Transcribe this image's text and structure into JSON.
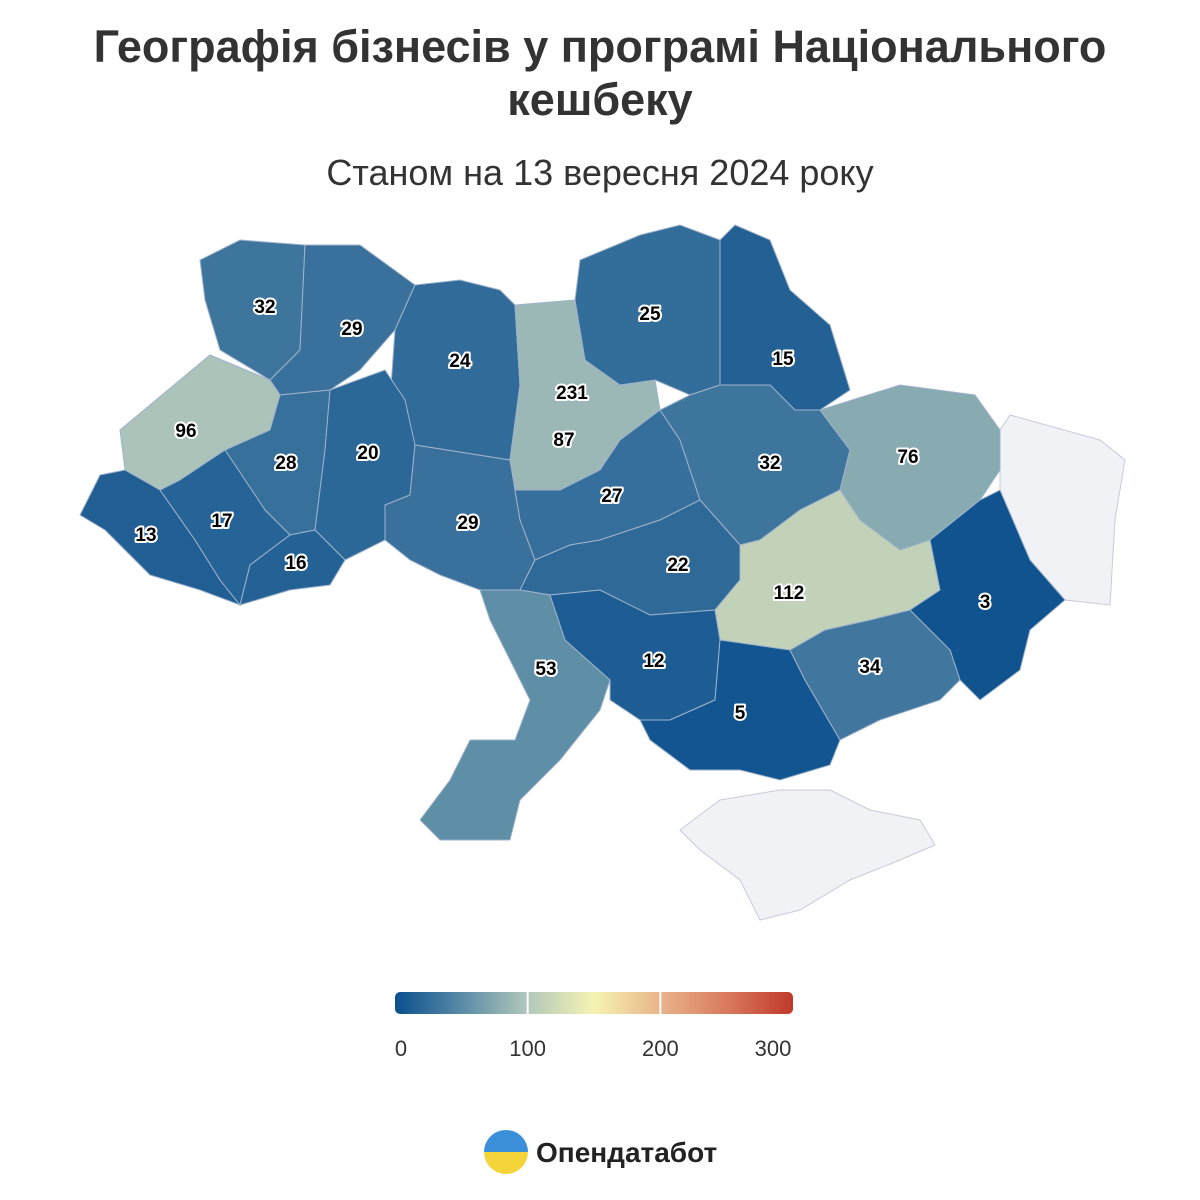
{
  "chart_data": {
    "type": "choropleth",
    "title": [
      "Географія бізнесів у програмі Національного",
      "кешбеку"
    ],
    "subtitle": "Станом на 13 вересня 2024 року",
    "values": [
      32,
      29,
      24,
      231,
      87,
      25,
      15,
      96,
      28,
      20,
      29,
      27,
      32,
      76,
      13,
      17,
      16,
      22,
      112,
      3,
      53,
      12,
      5,
      34
    ],
    "clim": [
      0,
      300
    ],
    "cticks": [
      0,
      100,
      200,
      300
    ],
    "colors": [
      "#0b4f8d",
      "#5a8aa6",
      "#b2c8bb",
      "#f6f3b3",
      "#e9b48a",
      "#d87a5e",
      "#c0392b"
    ],
    "source": "Опендатабот"
  }
}
